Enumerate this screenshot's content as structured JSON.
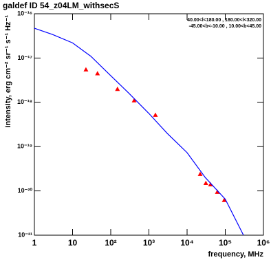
{
  "chart_data": {
    "type": "scatter",
    "title": "galdef ID 54_z04LM_withsecS",
    "annotations": [
      "40.00<l<180.00 , 180.00<l<320.00",
      "-45.00<b<-10.00 , 10.00<b<45.00"
    ],
    "xlabel": "frequency, MHz",
    "ylabel": "intensity, erg cm⁻² sr⁻¹ s⁻¹ Hz⁻¹",
    "xscale": "log",
    "yscale": "log",
    "xlim": [
      1,
      1000000
    ],
    "ylim": [
      1e-21,
      1e-16
    ],
    "xticks": [
      1,
      10,
      {
        "value": 100,
        "label": "10²"
      },
      {
        "value": 1000,
        "label": "10³"
      },
      {
        "value": 10000,
        "label": "10⁴"
      },
      {
        "value": 100000,
        "label": "10⁵"
      },
      {
        "value": 1000000,
        "label": "10⁶"
      }
    ],
    "yticks": [
      {
        "value": 1e-21,
        "label": "10⁻²¹"
      },
      {
        "value": 1e-20,
        "label": "10⁻²⁰"
      },
      {
        "value": 1e-19,
        "label": "10⁻¹⁹"
      },
      {
        "value": 1e-18,
        "label": "10⁻¹⁸"
      },
      {
        "value": 1e-17,
        "label": "10⁻¹⁷"
      },
      {
        "value": 1e-16,
        "label": "10⁻¹⁶"
      }
    ],
    "grid": false,
    "series": [
      {
        "type": "scatter",
        "marker": "triangle",
        "color": "#ff0000",
        "x": [
          22.4,
          45,
          150,
          410,
          1480,
          22000,
          31000,
          41000,
          62000,
          94000
        ],
        "values": [
          5.5e-18,
          4.5e-18,
          2e-18,
          1.1e-18,
          5.2e-19,
          2.4e-20,
          1.5e-20,
          1.4e-20,
          9.5e-21,
          6.2e-21
        ]
      },
      {
        "type": "line",
        "color": "#0000ff",
        "x": [
          1,
          3,
          10,
          30,
          100,
          300,
          1000,
          3000,
          10000,
          30000,
          100000,
          300000
        ],
        "values": [
          4.7e-17,
          3.4e-17,
          2.2e-17,
          1.1e-17,
          4e-18,
          1.6e-18,
          5.6e-19,
          2e-19,
          7.3e-20,
          2e-20,
          6.5e-21,
          1e-21
        ]
      }
    ]
  }
}
